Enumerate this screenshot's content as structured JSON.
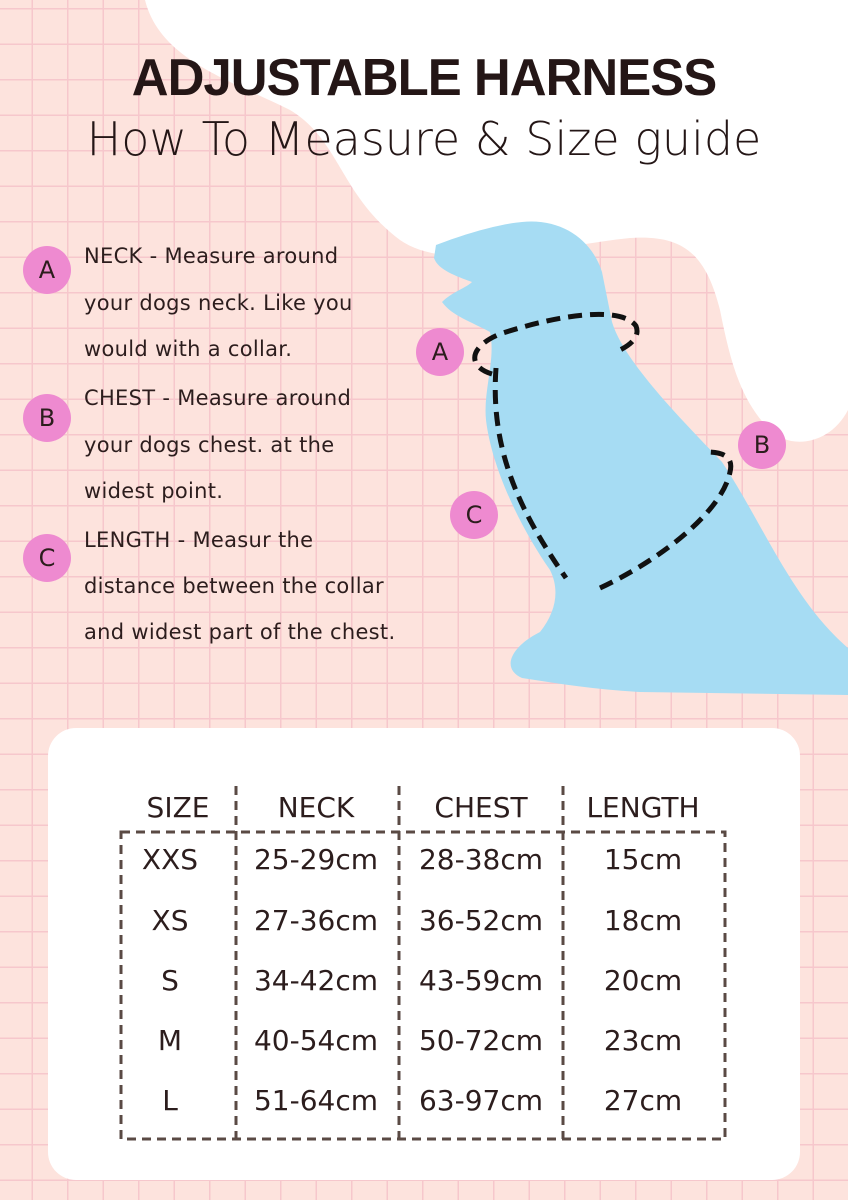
{
  "header": {
    "title": "ADJUSTABLE HARNESS",
    "subtitle": "How To Measure & Size guide"
  },
  "colors": {
    "background": "#fde3dd",
    "grid": "#f6c7cc",
    "dog": "#a6dcf3",
    "marker": "#ee8ad0",
    "text": "#2c1d1d"
  },
  "instructions": [
    {
      "marker": "A",
      "lines": [
        "NECK - Measure around",
        "your dogs neck. Like you",
        "would with a collar."
      ]
    },
    {
      "marker": "B",
      "lines": [
        "CHEST - Measure around",
        "your dogs chest. at the",
        "widest point."
      ]
    },
    {
      "marker": "C",
      "lines": [
        "LENGTH - Measur the",
        "distance between the collar",
        "and widest part of the chest."
      ]
    }
  ],
  "diagram": {
    "labels": [
      "A",
      "B",
      "C"
    ],
    "icon": "dog-silhouette"
  },
  "size_table": {
    "columns": [
      "SIZE",
      "NECK",
      "CHEST",
      "LENGTH"
    ],
    "rows": [
      [
        "XXS",
        "25-29cm",
        "28-38cm",
        "15cm"
      ],
      [
        "XS",
        "27-36cm",
        "36-52cm",
        "18cm"
      ],
      [
        "S",
        "34-42cm",
        "43-59cm",
        "20cm"
      ],
      [
        "M",
        "40-54cm",
        "50-72cm",
        "23cm"
      ],
      [
        "L",
        "51-64cm",
        "63-97cm",
        "27cm"
      ]
    ]
  }
}
